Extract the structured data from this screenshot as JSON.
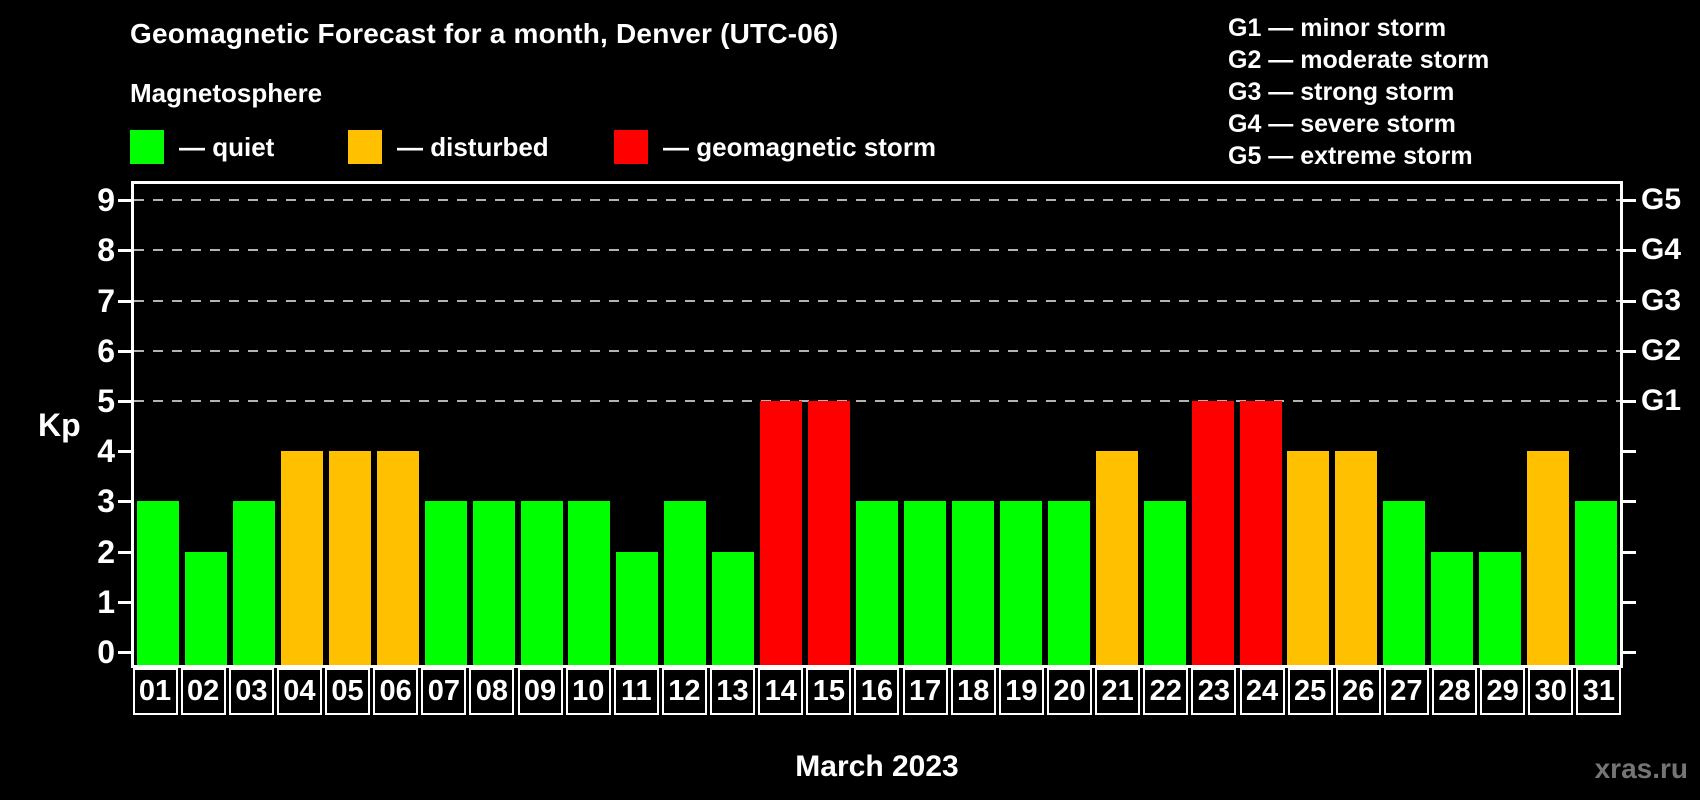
{
  "title": "Geomagnetic Forecast for a month, Denver (UTC-06)",
  "subtitle": "Magnetosphere",
  "legend": {
    "items": [
      {
        "key": "quiet",
        "label": "— quiet",
        "color": "#00ff00"
      },
      {
        "key": "disturbed",
        "label": "— disturbed",
        "color": "#ffc000"
      },
      {
        "key": "storm",
        "label": "— geomagnetic storm",
        "color": "#ff0000"
      }
    ]
  },
  "g_scale_legend": {
    "lines": [
      "G1 — minor storm",
      "G2 — moderate storm",
      "G3 — strong storm",
      "G4 — severe storm",
      "G5 — extreme storm"
    ]
  },
  "chart_data": {
    "type": "bar",
    "title": "Geomagnetic Forecast for a month, Denver (UTC-06)",
    "subtitle": "Magnetosphere",
    "xlabel": "March 2023",
    "ylabel": "Kp",
    "ylim": [
      0,
      9
    ],
    "yticks": [
      0,
      1,
      2,
      3,
      4,
      5,
      6,
      7,
      8,
      9
    ],
    "gridlines_at_kp": [
      5,
      6,
      7,
      8,
      9
    ],
    "grid_style": "dashed",
    "legend_position": "top-left",
    "right_axis": [
      {
        "kp": 5,
        "label": "G1"
      },
      {
        "kp": 6,
        "label": "G2"
      },
      {
        "kp": 7,
        "label": "G3"
      },
      {
        "kp": 8,
        "label": "G4"
      },
      {
        "kp": 9,
        "label": "G5"
      }
    ],
    "categories": [
      "01",
      "02",
      "03",
      "04",
      "05",
      "06",
      "07",
      "08",
      "09",
      "10",
      "11",
      "12",
      "13",
      "14",
      "15",
      "16",
      "17",
      "18",
      "19",
      "20",
      "21",
      "22",
      "23",
      "24",
      "25",
      "26",
      "27",
      "28",
      "29",
      "30",
      "31"
    ],
    "values": [
      3,
      2,
      3,
      4,
      4,
      4,
      3,
      3,
      3,
      3,
      2,
      3,
      2,
      5,
      5,
      3,
      3,
      3,
      3,
      3,
      4,
      3,
      5,
      5,
      4,
      4,
      3,
      2,
      2,
      4,
      3
    ],
    "statuses": [
      "quiet",
      "quiet",
      "quiet",
      "disturbed",
      "disturbed",
      "disturbed",
      "quiet",
      "quiet",
      "quiet",
      "quiet",
      "quiet",
      "quiet",
      "quiet",
      "storm",
      "storm",
      "quiet",
      "quiet",
      "quiet",
      "quiet",
      "quiet",
      "disturbed",
      "quiet",
      "storm",
      "storm",
      "disturbed",
      "disturbed",
      "quiet",
      "quiet",
      "quiet",
      "disturbed",
      "quiet"
    ],
    "colors": {
      "quiet": "#00ff00",
      "disturbed": "#ffc000",
      "storm": "#ff0000"
    }
  },
  "footer": {
    "xlabel": "March 2023",
    "watermark": "xras.ru"
  }
}
